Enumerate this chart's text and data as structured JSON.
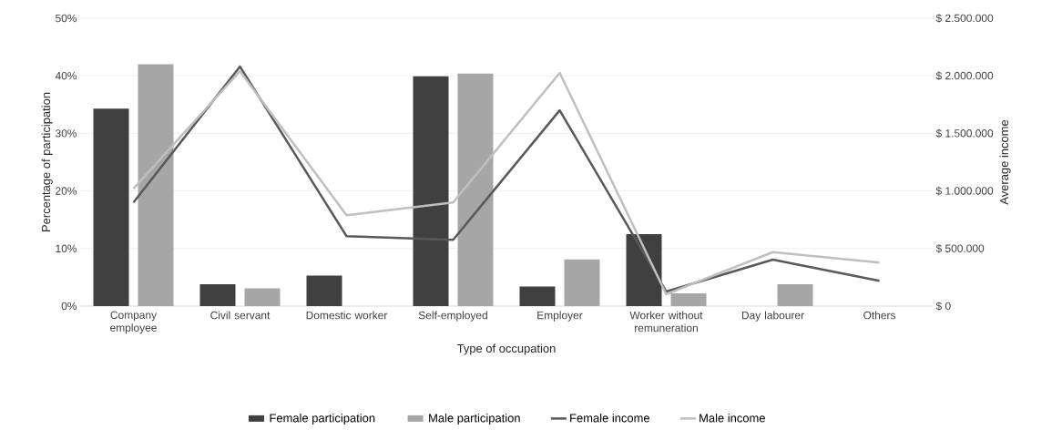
{
  "chart_data": {
    "type": "bar",
    "xlabel": "Type of occupation",
    "ylabel": "Percentage of participation",
    "y2label": "Average income",
    "categories": [
      "Company employee",
      "Civil servant",
      "Domestic worker",
      "Self-employed",
      "Employer",
      "Worker without remuneration",
      "Day labourer",
      "Others"
    ],
    "series": [
      {
        "name": "Female participation",
        "color": "#404040",
        "values": [
          34.3,
          3.8,
          5.3,
          39.9,
          3.4,
          12.5,
          null,
          null
        ]
      },
      {
        "name": "Male participation",
        "color": "#a6a6a6",
        "values": [
          42.0,
          3.1,
          null,
          40.4,
          8.1,
          2.2,
          3.8,
          null
        ]
      },
      {
        "name": "Female income",
        "type": "line",
        "axis": "y2",
        "color": "#595959",
        "values": [
          900000,
          2080000,
          607000,
          575000,
          1700000,
          127000,
          403000,
          219000
        ]
      },
      {
        "name": "Male income",
        "type": "line",
        "axis": "y2",
        "color": "#bfbfbf",
        "values": [
          1020000,
          2040000,
          790000,
          900000,
          2025000,
          103000,
          469000,
          377000
        ]
      }
    ],
    "ylim": [
      0,
      50
    ],
    "yticks": [
      {
        "value": 0,
        "label": "0%"
      },
      {
        "value": 10,
        "label": "10%"
      },
      {
        "value": 20,
        "label": "20%"
      },
      {
        "value": 30,
        "label": "30%"
      },
      {
        "value": 40,
        "label": "40%"
      },
      {
        "value": 50,
        "label": "50%"
      }
    ],
    "y2lim": [
      0,
      2500000
    ],
    "y2ticks": [
      {
        "value": 0,
        "label": "$ 0"
      },
      {
        "value": 500000,
        "label": "$ 500.000"
      },
      {
        "value": 1000000,
        "label": "$ 1.000.000"
      },
      {
        "value": 1500000,
        "label": "$ 1.500.000"
      },
      {
        "value": 2000000,
        "label": "$ 2.000.000"
      },
      {
        "value": 2500000,
        "label": "$ 2.500.000"
      }
    ],
    "grid": "y",
    "legend": "bottom",
    "marker": "none",
    "line_style": "solid"
  }
}
